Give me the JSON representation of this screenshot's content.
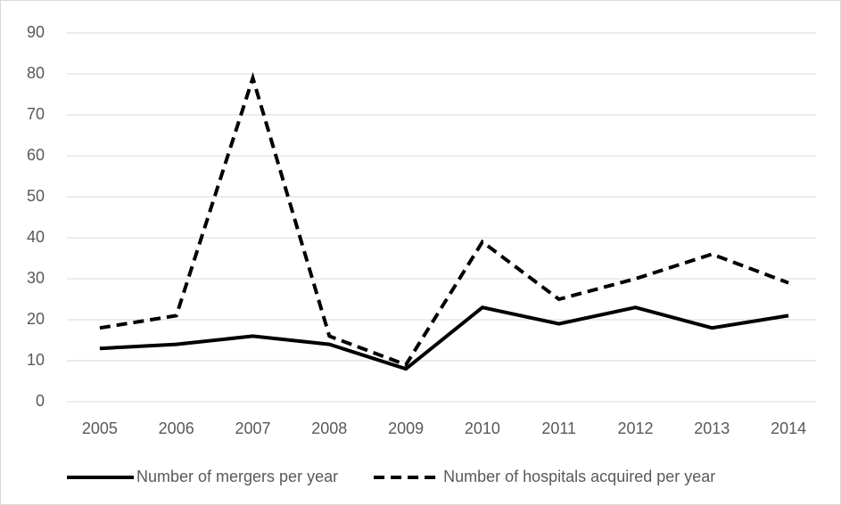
{
  "chart_data": {
    "type": "line",
    "categories": [
      "2005",
      "2006",
      "2007",
      "2008",
      "2009",
      "2010",
      "2011",
      "2012",
      "2013",
      "2014"
    ],
    "series": [
      {
        "name": "Number of mergers per year",
        "color": "#000000",
        "style": "solid",
        "values": [
          13,
          14,
          16,
          14,
          8,
          23,
          19,
          23,
          18,
          21
        ]
      },
      {
        "name": "Number of hospitals acquired per year",
        "color": "#000000",
        "style": "dashed",
        "values": [
          18,
          21,
          79,
          16,
          9,
          39,
          25,
          30,
          36,
          29
        ]
      }
    ],
    "ylim": [
      0,
      90
    ],
    "yticks": [
      0,
      10,
      20,
      30,
      40,
      50,
      60,
      70,
      80,
      90
    ],
    "grid": true,
    "legend": "bottom"
  }
}
